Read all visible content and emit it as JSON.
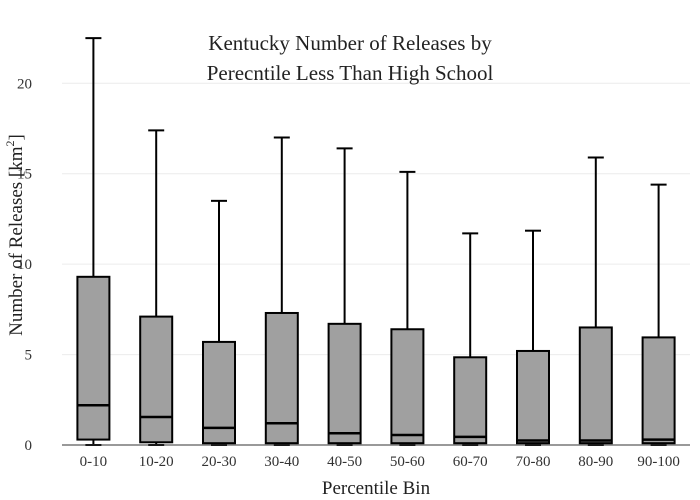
{
  "chart_data": {
    "type": "box",
    "title_line1": "Kentucky Number of Releases by",
    "title_line2": "Perecntile Less Than High School",
    "xlabel": "Percentile Bin",
    "ylabel_main": "Number of Releases  [km",
    "ylabel_sup": "2",
    "ylabel_end": "]",
    "ylim": [
      0,
      23.5
    ],
    "yticks": [
      0,
      5,
      10,
      15,
      20
    ],
    "grid": true,
    "box_color": "#a0a0a0",
    "categories": [
      "0-10",
      "10-20",
      "20-30",
      "30-40",
      "40-50",
      "50-60",
      "60-70",
      "70-80",
      "80-90",
      "90-100"
    ],
    "boxes": [
      {
        "min": 0,
        "q1": 0.3,
        "median": 2.2,
        "q3": 9.3,
        "max": 22.5
      },
      {
        "min": 0,
        "q1": 0.15,
        "median": 1.55,
        "q3": 7.1,
        "max": 17.4
      },
      {
        "min": 0,
        "q1": 0.1,
        "median": 0.95,
        "q3": 5.7,
        "max": 13.5
      },
      {
        "min": 0,
        "q1": 0.1,
        "median": 1.2,
        "q3": 7.3,
        "max": 17.0
      },
      {
        "min": 0,
        "q1": 0.1,
        "median": 0.65,
        "q3": 6.7,
        "max": 16.4
      },
      {
        "min": 0,
        "q1": 0.1,
        "median": 0.55,
        "q3": 6.4,
        "max": 15.1
      },
      {
        "min": 0,
        "q1": 0.1,
        "median": 0.45,
        "q3": 4.85,
        "max": 11.7
      },
      {
        "min": 0,
        "q1": 0.1,
        "median": 0.25,
        "q3": 5.2,
        "max": 11.85
      },
      {
        "min": 0,
        "q1": 0.1,
        "median": 0.25,
        "q3": 6.5,
        "max": 15.9
      },
      {
        "min": 0,
        "q1": 0.1,
        "median": 0.3,
        "q3": 5.95,
        "max": 14.4
      }
    ]
  }
}
